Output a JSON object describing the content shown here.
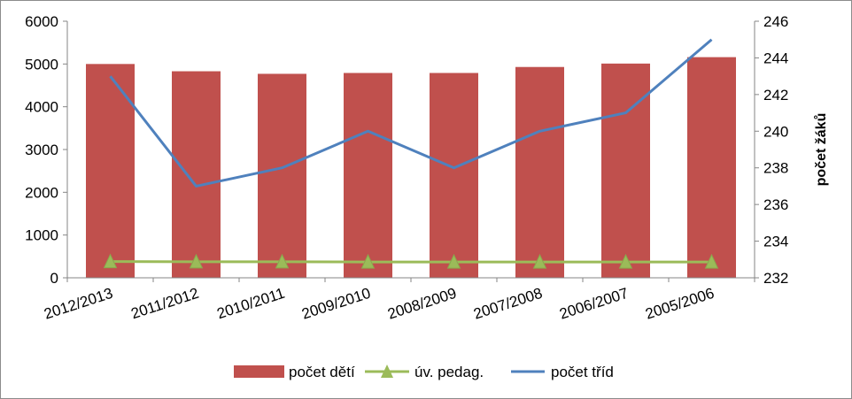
{
  "chart_data": {
    "type": "bar",
    "categories": [
      "2012/2013",
      "2011/2012",
      "2010/2011",
      "2009/2010",
      "2008/2009",
      "2007/2008",
      "2006/2007",
      "2005/2006"
    ],
    "series": [
      {
        "name": "počet dětí",
        "type": "bar",
        "axis": "left",
        "color": "#c0504d",
        "values": [
          5000,
          4830,
          4770,
          4790,
          4790,
          4930,
          5010,
          5160
        ]
      },
      {
        "name": "úv. pedag.",
        "type": "line",
        "axis": "left",
        "color": "#9bbb59",
        "marker": "triangle",
        "values": [
          380,
          375,
          375,
          370,
          370,
          370,
          370,
          370
        ]
      },
      {
        "name": "počet tříd",
        "type": "line",
        "axis": "right",
        "color": "#4f81bd",
        "values": [
          243,
          237,
          238,
          240,
          238,
          240,
          241,
          245
        ]
      }
    ],
    "y_left": {
      "min": 0,
      "max": 6000,
      "ticks": [
        0,
        1000,
        2000,
        3000,
        4000,
        5000,
        6000
      ],
      "label": ""
    },
    "y_right": {
      "min": 232,
      "max": 246,
      "ticks": [
        232,
        234,
        236,
        238,
        240,
        242,
        244,
        246
      ],
      "label": "počet žáků"
    },
    "title": "",
    "xlabel": "",
    "grid": false,
    "legend_position": "bottom"
  }
}
